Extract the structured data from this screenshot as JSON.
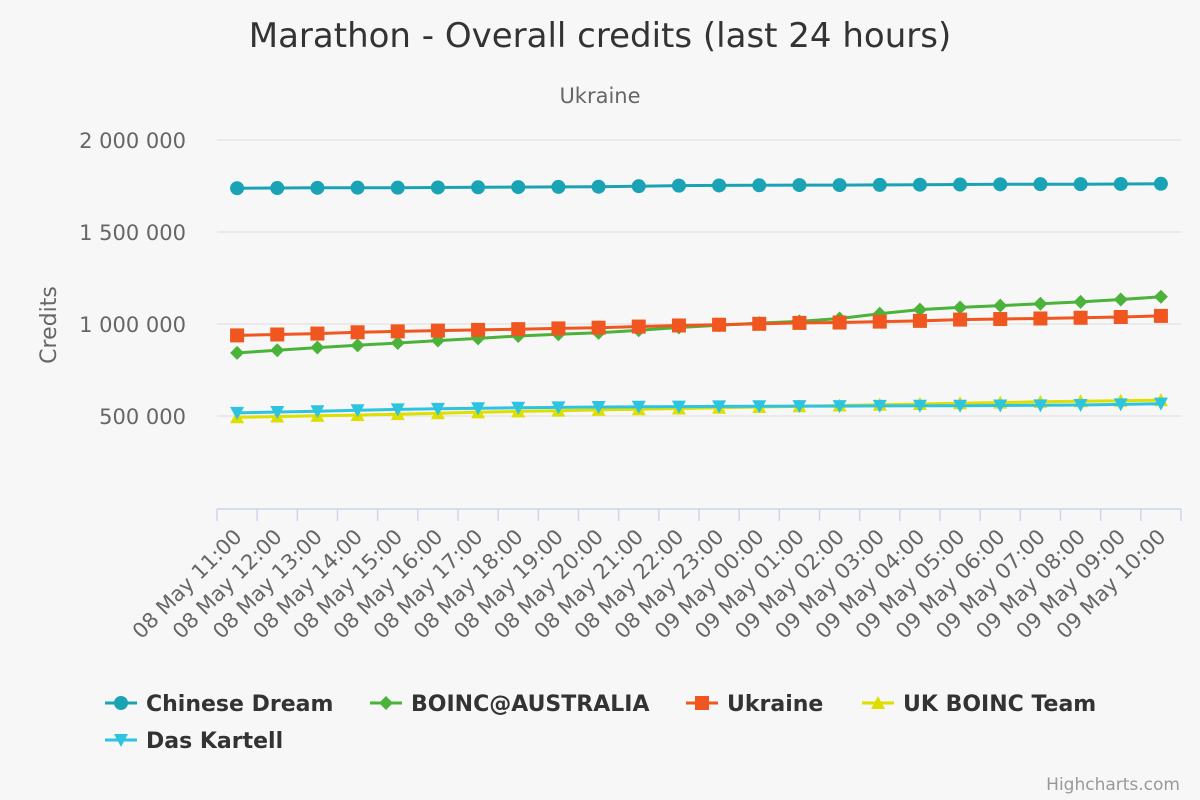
{
  "chart_data": {
    "type": "line",
    "title": "Marathon - Overall credits (last 24 hours)",
    "subtitle": "Ukraine",
    "ylabel": "Credits",
    "ylim": [
      0,
      2000000
    ],
    "yticks": [
      500000,
      1000000,
      1500000,
      2000000
    ],
    "ytick_labels": [
      "500 000",
      "1 000 000",
      "1 500 000",
      "2 000 000"
    ],
    "grid": true,
    "legend_position": "bottom",
    "credits": "Highcharts.com",
    "categories": [
      "08 May 11:00",
      "08 May 12:00",
      "08 May 13:00",
      "08 May 14:00",
      "08 May 15:00",
      "08 May 16:00",
      "08 May 17:00",
      "08 May 18:00",
      "08 May 19:00",
      "08 May 20:00",
      "08 May 21:00",
      "08 May 22:00",
      "08 May 23:00",
      "09 May 00:00",
      "09 May 01:00",
      "09 May 02:00",
      "09 May 03:00",
      "09 May 04:00",
      "09 May 05:00",
      "09 May 06:00",
      "09 May 07:00",
      "09 May 08:00",
      "09 May 09:00",
      "09 May 10:00"
    ],
    "series": [
      {
        "name": "Chinese Dream",
        "color": "#1aa3b5",
        "marker": "circle",
        "values": [
          1738000,
          1739000,
          1740000,
          1741000,
          1741000,
          1742000,
          1743000,
          1744000,
          1745000,
          1746000,
          1749000,
          1752000,
          1753000,
          1754000,
          1755000,
          1755000,
          1756000,
          1757000,
          1758000,
          1759000,
          1760000,
          1760000,
          1761000,
          1762000
        ]
      },
      {
        "name": "BOINC@AUSTRALIA",
        "color": "#4bb23a",
        "marker": "diamond",
        "values": [
          843000,
          857000,
          872000,
          884000,
          897000,
          910000,
          922000,
          935000,
          944000,
          952000,
          966000,
          981000,
          993000,
          1005000,
          1014000,
          1030000,
          1056000,
          1078000,
          1090000,
          1100000,
          1110000,
          1120000,
          1133000,
          1148000
        ]
      },
      {
        "name": "Ukraine",
        "color": "#f0561f",
        "marker": "square",
        "values": [
          938000,
          943000,
          948000,
          955000,
          960000,
          964000,
          968000,
          972000,
          976000,
          980000,
          986000,
          992000,
          996000,
          1001000,
          1006000,
          1008000,
          1013000,
          1017000,
          1024000,
          1027000,
          1030000,
          1034000,
          1038000,
          1044000
        ]
      },
      {
        "name": "UK BOINC Team",
        "color": "#dede00",
        "marker": "triangle",
        "values": [
          493000,
          497000,
          501000,
          505000,
          510000,
          515000,
          520000,
          525000,
          529000,
          533000,
          537000,
          541000,
          545000,
          549000,
          553000,
          557000,
          561000,
          565000,
          569000,
          573000,
          577000,
          580000,
          583000,
          586000
        ]
      },
      {
        "name": "Das Kartell",
        "color": "#2ec4e0",
        "marker": "triangle-down",
        "values": [
          517000,
          522000,
          526000,
          531000,
          536000,
          539000,
          542000,
          545000,
          547000,
          549000,
          550000,
          551000,
          552000,
          553000,
          554000,
          554000,
          555000,
          556000,
          556000,
          557000,
          558000,
          560000,
          563000,
          567000
        ]
      }
    ]
  }
}
